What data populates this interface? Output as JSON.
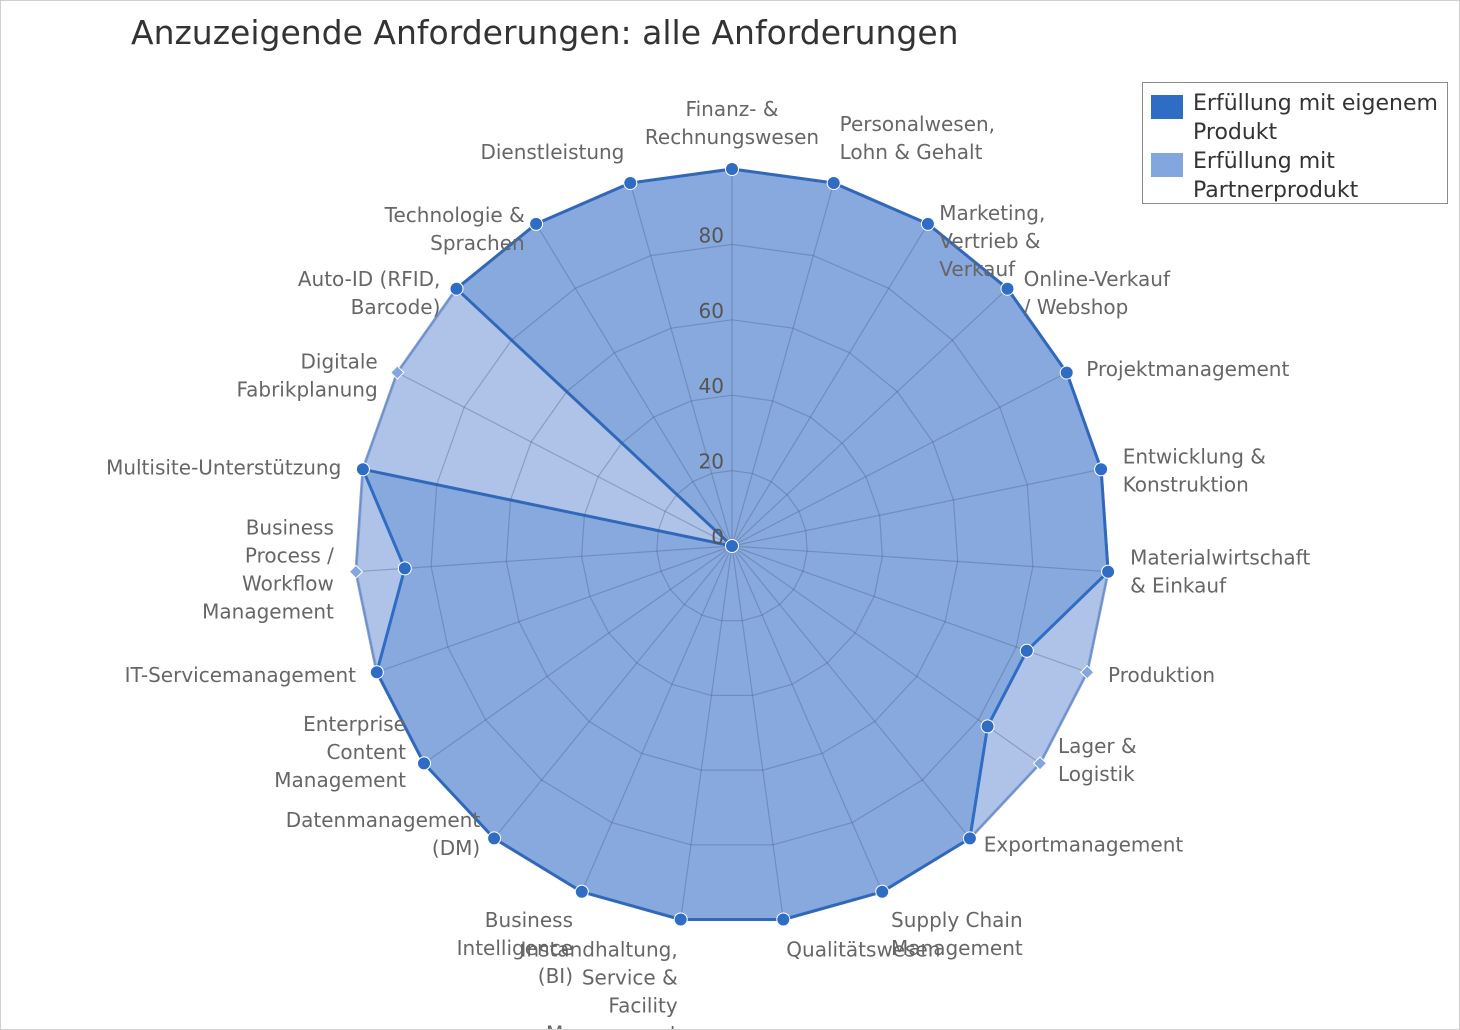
{
  "chart_data": {
    "type": "radar",
    "title": "Anzuzeigende Anforderungen: alle Anforderungen",
    "categories": [
      "Finanz- &\nRechnungswesen",
      "Personalwesen,\nLohn & Gehalt",
      "Marketing,\nVertrieb &\nVerkauf",
      "Online-Verkauf\n/ Webshop",
      "Projektmanagement",
      "Entwicklung &\nKonstruktion",
      "Materialwirtschaft\n& Einkauf",
      "Produktion",
      "Lager &\nLogistik",
      "Exportmanagement",
      "Supply Chain\nManagement",
      "Qualitätswesen",
      "Instandhaltung,\nService &\nFacility\nManagement",
      "Business\nIntelligence\n(BI)",
      "Datenmanagement\n(DM)",
      "Enterprise\nContent\nManagement",
      "IT-Servicemanagement",
      "Business\nProcess /\nWorkflow\nManagement",
      "Multisite-Unterstützung",
      "Digitale\nFabrikplanung",
      "Auto-ID (RFID,\nBarcode)",
      "Technologie &\nSprachen",
      "Dienstleistung"
    ],
    "series": [
      {
        "name": "Erfüllung mit eigenem Produkt",
        "color": "#2f6cc4",
        "values": [
          100,
          100,
          100,
          100,
          100,
          100,
          100,
          83,
          83,
          100,
          100,
          100,
          100,
          100,
          100,
          100,
          100,
          87,
          100,
          0,
          100,
          100,
          100
        ]
      },
      {
        "name": "Erfüllung mit Partnerprodukt",
        "color": "#84a6de",
        "values": [
          100,
          100,
          100,
          100,
          100,
          100,
          100,
          100,
          100,
          100,
          100,
          100,
          100,
          100,
          100,
          100,
          100,
          100,
          100,
          100,
          100,
          100,
          100
        ]
      }
    ],
    "yticks": [
      0,
      20,
      40,
      60,
      80
    ],
    "ylim": [
      0,
      100
    ],
    "grid": true,
    "legend_position": "top-right"
  },
  "legend": {
    "items": [
      {
        "label": "Erfüllung mit eigenem Produkt",
        "color": "#2f6cc4"
      },
      {
        "label": "Erfüllung mit Partnerprodukt",
        "color": "#84a6de"
      }
    ]
  }
}
